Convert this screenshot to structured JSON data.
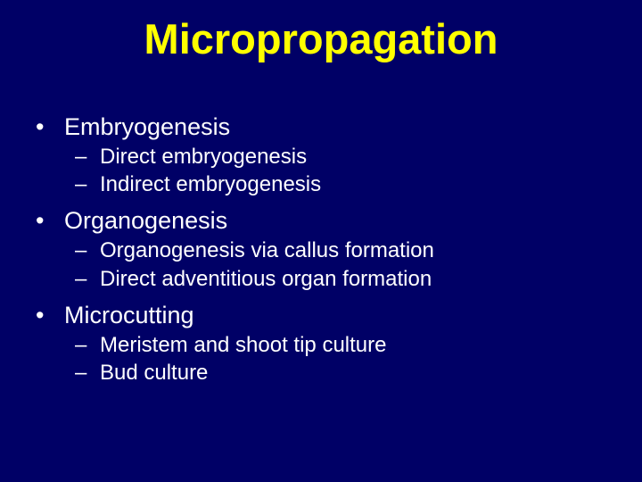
{
  "slide": {
    "background_color": "#000066",
    "title_color": "#ffff00",
    "text_color": "#ffffff",
    "title_font": "Arial Black",
    "body_font": "Verdana",
    "title_fontsize": 47,
    "bullet_fontsize": 27,
    "sub_fontsize": 24,
    "title": "Micropropagation",
    "bullets": [
      {
        "label": "Embryogenesis",
        "subs": [
          "Direct embryogenesis",
          "Indirect embryogenesis"
        ]
      },
      {
        "label": "Organogenesis",
        "subs": [
          "Organogenesis via callus formation",
          "Direct adventitious organ formation"
        ]
      },
      {
        "label": "Microcutting",
        "subs": [
          "Meristem and shoot tip culture",
          "Bud culture"
        ]
      }
    ]
  }
}
